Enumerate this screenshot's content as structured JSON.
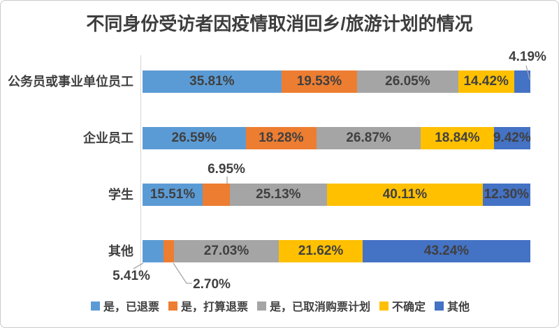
{
  "chart_data": {
    "type": "bar",
    "orientation": "horizontal-stacked",
    "title": "不同身份受访者因疫情取消回乡/旅游计划的情况",
    "categories": [
      "公务员或事业单位员工",
      "企业员工",
      "学生",
      "其他"
    ],
    "series": [
      {
        "name": "是，已退票",
        "color": "#5B9BD5",
        "values": [
          35.81,
          26.59,
          15.51,
          5.41
        ],
        "labels": [
          "35.81%",
          "26.59%",
          "15.51%",
          "5.41%"
        ]
      },
      {
        "name": "是，打算退票",
        "color": "#ED7D31",
        "values": [
          19.53,
          18.28,
          6.95,
          2.7
        ],
        "labels": [
          "19.53%",
          "18.28%",
          "6.95%",
          "2.70%"
        ]
      },
      {
        "name": "是，已取消购票计划",
        "color": "#A5A5A5",
        "values": [
          26.05,
          26.87,
          25.13,
          27.03
        ],
        "labels": [
          "26.05%",
          "26.87%",
          "25.13%",
          "27.03%"
        ]
      },
      {
        "name": "不确定",
        "color": "#FFC000",
        "values": [
          14.42,
          18.84,
          40.11,
          21.62
        ],
        "labels": [
          "14.42%",
          "18.84%",
          "40.11%",
          "21.62%"
        ]
      },
      {
        "name": "其他",
        "color": "#4472C4",
        "values": [
          4.19,
          9.42,
          12.3,
          43.24
        ],
        "labels": [
          "4.19%",
          "9.42%",
          "12.30%",
          "43.24%"
        ]
      }
    ],
    "value_format": "percent-2dp",
    "xlim": [
      0,
      100
    ],
    "grid": false,
    "legend_position": "bottom",
    "label_color": "#404040",
    "outside_labels": [
      {
        "category": 0,
        "series": 4,
        "position": "above"
      },
      {
        "category": 2,
        "series": 1,
        "position": "above"
      },
      {
        "category": 3,
        "series": 0,
        "position": "below"
      },
      {
        "category": 3,
        "series": 1,
        "position": "below"
      }
    ]
  }
}
